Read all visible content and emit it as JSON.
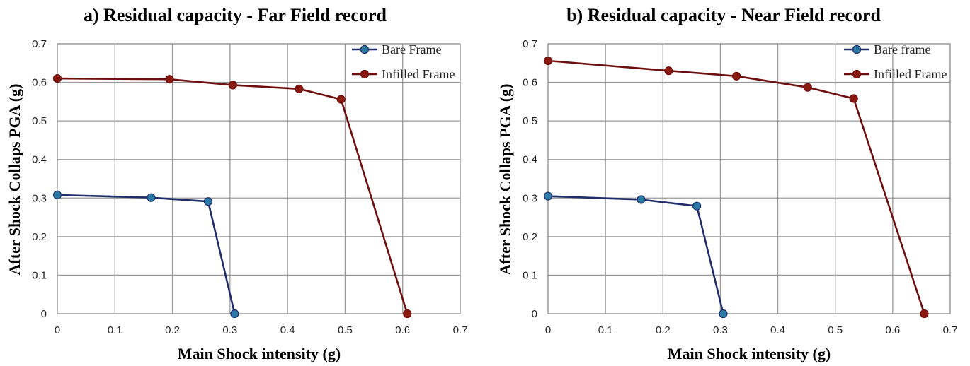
{
  "chart_data": [
    {
      "type": "line",
      "title": "a) Residual capacity - Far Field record",
      "xlabel": "Main Shock intensity (g)",
      "ylabel": "After Shock Collaps PGA (g)",
      "xlim": [
        0,
        0.7
      ],
      "ylim": [
        0,
        0.7
      ],
      "xticks": [
        "0",
        "0.1",
        "0.2",
        "0.3",
        "0.4",
        "0.5",
        "0.6",
        "0.7"
      ],
      "yticks": [
        "0",
        "0.1",
        "0.2",
        "0.3",
        "0.4",
        "0.5",
        "0.6",
        "0.7"
      ],
      "grid": true,
      "legend_position": "top-right",
      "series": [
        {
          "name": "Bare Frame",
          "line_color": "#1f2d6b",
          "marker_color": "#2a7aa5",
          "points": [
            [
              0,
              0.308
            ],
            [
              0.163,
              0.301
            ],
            [
              0.262,
              0.291
            ],
            [
              0.308,
              0
            ]
          ]
        },
        {
          "name": "Infilled Frame",
          "line_color": "#6e0f0f",
          "marker_color": "#8a1a10",
          "points": [
            [
              0,
              0.61
            ],
            [
              0.195,
              0.608
            ],
            [
              0.305,
              0.593
            ],
            [
              0.42,
              0.583
            ],
            [
              0.493,
              0.556
            ],
            [
              0.608,
              0
            ]
          ]
        }
      ]
    },
    {
      "type": "line",
      "title": "b) Residual capacity - Near Field record",
      "xlabel": "Main Shock intensity (g)",
      "ylabel": "After Shock Collaps PGA (g)",
      "xlim": [
        0,
        0.7
      ],
      "ylim": [
        0,
        0.7
      ],
      "xticks": [
        "0",
        "0.1",
        "0.2",
        "0.3",
        "0.4",
        "0.5",
        "0.6",
        "0.7"
      ],
      "yticks": [
        "0",
        "0.1",
        "0.2",
        "0.3",
        "0.4",
        "0.5",
        "0.6",
        "0.7"
      ],
      "grid": true,
      "legend_position": "top-right",
      "series": [
        {
          "name": "Bare frame",
          "line_color": "#1f2d6b",
          "marker_color": "#2a7aa5",
          "points": [
            [
              0,
              0.305
            ],
            [
              0.162,
              0.296
            ],
            [
              0.259,
              0.279
            ],
            [
              0.305,
              0
            ]
          ]
        },
        {
          "name": "Infilled Frame",
          "line_color": "#6e0f0f",
          "marker_color": "#8a1a10",
          "points": [
            [
              0,
              0.656
            ],
            [
              0.21,
              0.63
            ],
            [
              0.328,
              0.616
            ],
            [
              0.452,
              0.587
            ],
            [
              0.532,
              0.558
            ],
            [
              0.655,
              0
            ]
          ]
        }
      ]
    }
  ]
}
